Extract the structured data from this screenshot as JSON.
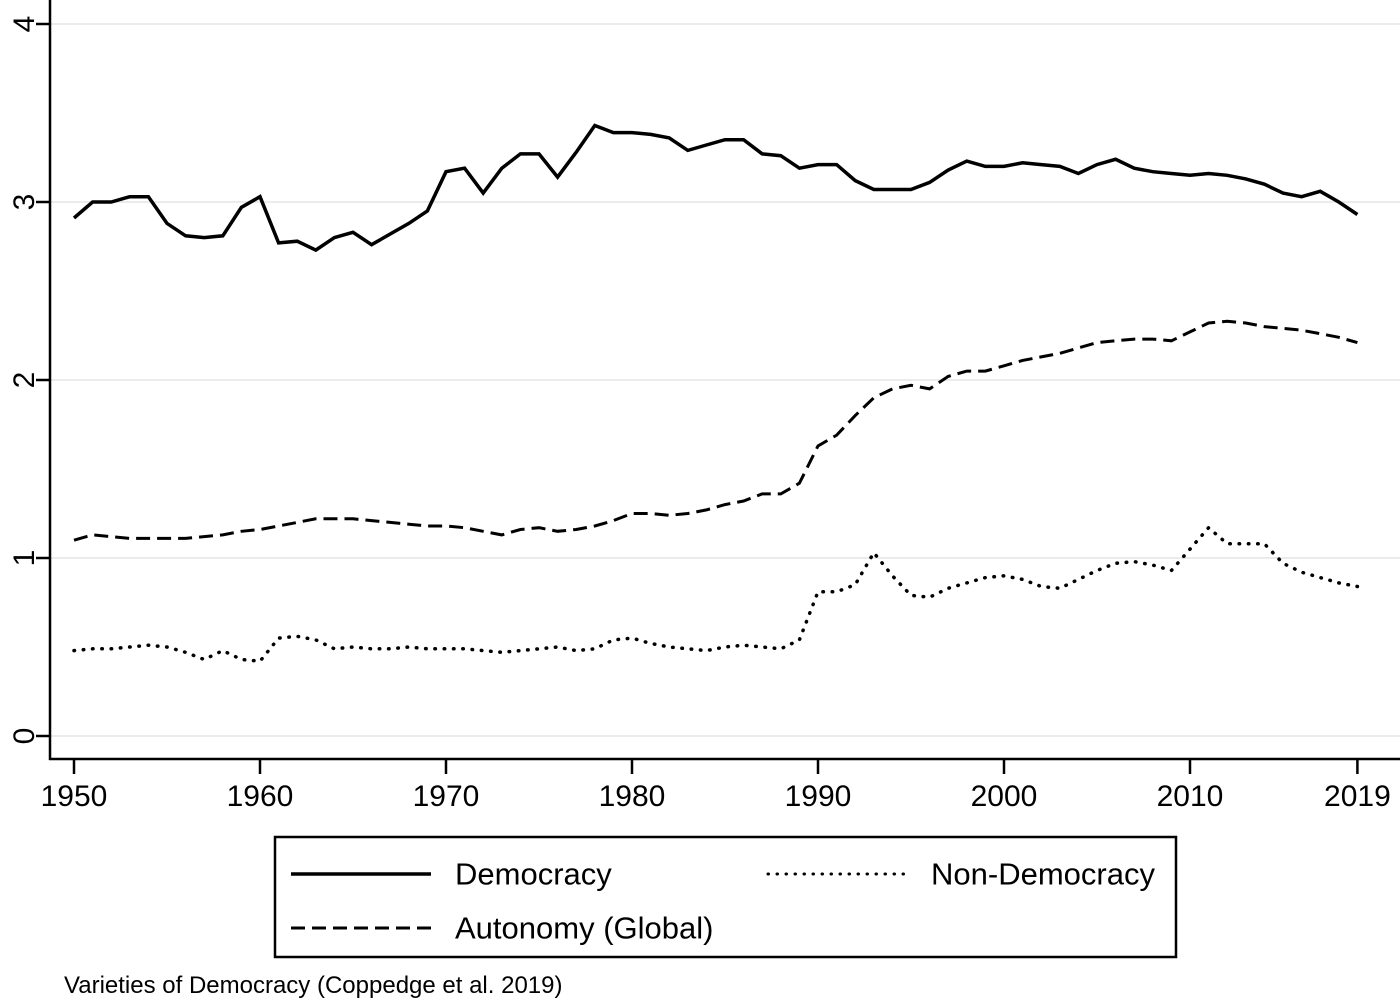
{
  "figure": {
    "caption": "Varieties of Democracy (Coppedge et al. 2019)"
  },
  "chart_data": {
    "type": "line",
    "title": "",
    "xlabel": "",
    "ylabel": "",
    "grid": true,
    "grid_color": "#ebebeb",
    "line_color": "#000000",
    "background": "#ffffff",
    "legend_position": "bottom-center-box",
    "x_ticks": [
      1950,
      1960,
      1970,
      1980,
      1990,
      2000,
      2010,
      2019
    ],
    "y_ticks": [
      0,
      1,
      2,
      3,
      4
    ],
    "ylim": [
      -0.13,
      4.14
    ],
    "xlim": [
      1948.7,
      2021.3
    ],
    "x": [
      1950,
      1951,
      1952,
      1953,
      1954,
      1955,
      1956,
      1957,
      1958,
      1959,
      1960,
      1961,
      1962,
      1963,
      1964,
      1965,
      1966,
      1967,
      1968,
      1969,
      1970,
      1971,
      1972,
      1973,
      1974,
      1975,
      1976,
      1977,
      1978,
      1979,
      1980,
      1981,
      1982,
      1983,
      1984,
      1985,
      1986,
      1987,
      1988,
      1989,
      1990,
      1991,
      1992,
      1993,
      1994,
      1995,
      1996,
      1997,
      1998,
      1999,
      2000,
      2001,
      2002,
      2003,
      2004,
      2005,
      2006,
      2007,
      2008,
      2009,
      2010,
      2011,
      2012,
      2013,
      2014,
      2015,
      2016,
      2017,
      2018,
      2019
    ],
    "series": [
      {
        "name": "Democracy",
        "style": "solid",
        "values": [
          2.91,
          3.0,
          3.0,
          3.03,
          3.03,
          2.88,
          2.81,
          2.8,
          2.81,
          2.97,
          3.03,
          2.77,
          2.78,
          2.73,
          2.8,
          2.83,
          2.76,
          2.82,
          2.88,
          2.95,
          3.17,
          3.19,
          3.05,
          3.19,
          3.27,
          3.27,
          3.14,
          3.28,
          3.43,
          3.39,
          3.39,
          3.38,
          3.36,
          3.29,
          3.32,
          3.35,
          3.35,
          3.27,
          3.26,
          3.19,
          3.21,
          3.21,
          3.12,
          3.07,
          3.07,
          3.07,
          3.11,
          3.18,
          3.23,
          3.2,
          3.2,
          3.22,
          3.21,
          3.2,
          3.16,
          3.21,
          3.24,
          3.19,
          3.17,
          3.16,
          3.15,
          3.16,
          3.15,
          3.13,
          3.1,
          3.05,
          3.03,
          3.06,
          3.0,
          2.93
        ]
      },
      {
        "name": "Autonomy (Global)",
        "style": "dashed",
        "values": [
          1.1,
          1.13,
          1.12,
          1.11,
          1.11,
          1.11,
          1.11,
          1.12,
          1.13,
          1.15,
          1.16,
          1.18,
          1.2,
          1.22,
          1.22,
          1.22,
          1.21,
          1.2,
          1.19,
          1.18,
          1.18,
          1.17,
          1.15,
          1.13,
          1.16,
          1.17,
          1.15,
          1.16,
          1.18,
          1.21,
          1.25,
          1.25,
          1.24,
          1.25,
          1.27,
          1.3,
          1.32,
          1.36,
          1.36,
          1.42,
          1.63,
          1.69,
          1.8,
          1.9,
          1.95,
          1.97,
          1.95,
          2.02,
          2.05,
          2.05,
          2.08,
          2.11,
          2.13,
          2.15,
          2.18,
          2.21,
          2.22,
          2.23,
          2.23,
          2.22,
          2.27,
          2.32,
          2.33,
          2.32,
          2.3,
          2.29,
          2.28,
          2.26,
          2.24,
          2.21
        ]
      },
      {
        "name": "Non-Democracy",
        "style": "dotted",
        "values": [
          0.48,
          0.49,
          0.49,
          0.5,
          0.51,
          0.5,
          0.47,
          0.43,
          0.48,
          0.43,
          0.42,
          0.55,
          0.56,
          0.54,
          0.49,
          0.5,
          0.49,
          0.49,
          0.5,
          0.49,
          0.49,
          0.49,
          0.48,
          0.47,
          0.48,
          0.49,
          0.5,
          0.48,
          0.49,
          0.54,
          0.55,
          0.52,
          0.5,
          0.49,
          0.48,
          0.5,
          0.51,
          0.5,
          0.49,
          0.54,
          0.81,
          0.81,
          0.85,
          1.03,
          0.9,
          0.79,
          0.78,
          0.83,
          0.86,
          0.89,
          0.9,
          0.88,
          0.84,
          0.83,
          0.88,
          0.93,
          0.97,
          0.98,
          0.96,
          0.93,
          1.05,
          1.17,
          1.08,
          1.08,
          1.08,
          0.97,
          0.92,
          0.89,
          0.86,
          0.84
        ]
      }
    ]
  }
}
